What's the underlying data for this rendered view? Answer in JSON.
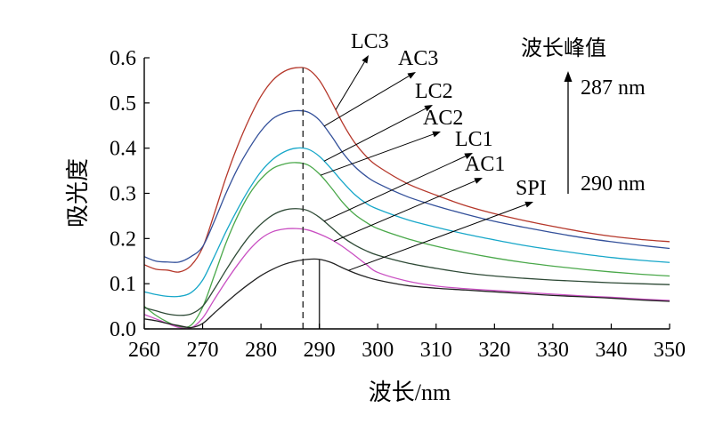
{
  "chart_data": {
    "type": "line",
    "title": "",
    "xlabel": "波长/nm",
    "ylabel": "吸光度",
    "xlim": [
      260,
      350
    ],
    "ylim": [
      0.0,
      0.6
    ],
    "x_ticks": [
      "260",
      "270",
      "280",
      "290",
      "300",
      "310",
      "320",
      "330",
      "340",
      "350"
    ],
    "y_ticks": [
      "0.0",
      "0.1",
      "0.2",
      "0.3",
      "0.4",
      "0.5",
      "0.6"
    ],
    "grid": false,
    "legend": "none",
    "series": [
      {
        "name": "LC3",
        "color": "#b5372a",
        "points": [
          [
            260,
            0.142
          ],
          [
            262,
            0.132
          ],
          [
            264,
            0.13
          ],
          [
            266,
            0.126
          ],
          [
            268,
            0.14
          ],
          [
            270,
            0.18
          ],
          [
            272,
            0.255
          ],
          [
            274,
            0.335
          ],
          [
            276,
            0.405
          ],
          [
            278,
            0.465
          ],
          [
            280,
            0.515
          ],
          [
            282,
            0.55
          ],
          [
            284,
            0.57
          ],
          [
            286,
            0.578
          ],
          [
            288,
            0.575
          ],
          [
            290,
            0.55
          ],
          [
            292,
            0.505
          ],
          [
            294,
            0.455
          ],
          [
            296,
            0.413
          ],
          [
            298,
            0.382
          ],
          [
            300,
            0.36
          ],
          [
            305,
            0.322
          ],
          [
            310,
            0.296
          ],
          [
            315,
            0.273
          ],
          [
            320,
            0.255
          ],
          [
            325,
            0.24
          ],
          [
            330,
            0.227
          ],
          [
            335,
            0.215
          ],
          [
            340,
            0.205
          ],
          [
            345,
            0.198
          ],
          [
            350,
            0.193
          ]
        ]
      },
      {
        "name": "AC3",
        "color": "#33509a",
        "points": [
          [
            260,
            0.16
          ],
          [
            262,
            0.15
          ],
          [
            264,
            0.148
          ],
          [
            266,
            0.148
          ],
          [
            268,
            0.16
          ],
          [
            270,
            0.182
          ],
          [
            272,
            0.238
          ],
          [
            274,
            0.3
          ],
          [
            276,
            0.355
          ],
          [
            278,
            0.4
          ],
          [
            280,
            0.438
          ],
          [
            282,
            0.465
          ],
          [
            284,
            0.478
          ],
          [
            286,
            0.483
          ],
          [
            288,
            0.48
          ],
          [
            290,
            0.462
          ],
          [
            292,
            0.428
          ],
          [
            294,
            0.39
          ],
          [
            296,
            0.36
          ],
          [
            298,
            0.338
          ],
          [
            300,
            0.322
          ],
          [
            305,
            0.293
          ],
          [
            310,
            0.272
          ],
          [
            315,
            0.254
          ],
          [
            320,
            0.238
          ],
          [
            325,
            0.225
          ],
          [
            330,
            0.213
          ],
          [
            335,
            0.202
          ],
          [
            340,
            0.193
          ],
          [
            345,
            0.185
          ],
          [
            350,
            0.178
          ]
        ]
      },
      {
        "name": "LC2",
        "color": "#17a7c9",
        "points": [
          [
            260,
            0.082
          ],
          [
            262,
            0.076
          ],
          [
            264,
            0.072
          ],
          [
            266,
            0.072
          ],
          [
            268,
            0.08
          ],
          [
            270,
            0.108
          ],
          [
            272,
            0.16
          ],
          [
            274,
            0.215
          ],
          [
            276,
            0.265
          ],
          [
            278,
            0.31
          ],
          [
            280,
            0.348
          ],
          [
            282,
            0.375
          ],
          [
            284,
            0.392
          ],
          [
            286,
            0.4
          ],
          [
            288,
            0.398
          ],
          [
            290,
            0.382
          ],
          [
            292,
            0.355
          ],
          [
            294,
            0.325
          ],
          [
            296,
            0.298
          ],
          [
            298,
            0.278
          ],
          [
            300,
            0.265
          ],
          [
            305,
            0.242
          ],
          [
            310,
            0.225
          ],
          [
            315,
            0.21
          ],
          [
            320,
            0.197
          ],
          [
            325,
            0.185
          ],
          [
            330,
            0.175
          ],
          [
            335,
            0.166
          ],
          [
            340,
            0.158
          ],
          [
            345,
            0.152
          ],
          [
            350,
            0.147
          ]
        ]
      },
      {
        "name": "AC2",
        "color": "#4aa84a",
        "points": [
          [
            260,
            0.05
          ],
          [
            262,
            0.03
          ],
          [
            264,
            0.015
          ],
          [
            266,
            0.005
          ],
          [
            268,
            0.008
          ],
          [
            270,
            0.048
          ],
          [
            272,
            0.118
          ],
          [
            274,
            0.19
          ],
          [
            276,
            0.25
          ],
          [
            278,
            0.298
          ],
          [
            280,
            0.332
          ],
          [
            282,
            0.355
          ],
          [
            284,
            0.365
          ],
          [
            286,
            0.368
          ],
          [
            288,
            0.363
          ],
          [
            290,
            0.343
          ],
          [
            292,
            0.313
          ],
          [
            294,
            0.28
          ],
          [
            296,
            0.254
          ],
          [
            298,
            0.236
          ],
          [
            300,
            0.222
          ],
          [
            305,
            0.2
          ],
          [
            310,
            0.183
          ],
          [
            315,
            0.169
          ],
          [
            320,
            0.157
          ],
          [
            325,
            0.147
          ],
          [
            330,
            0.139
          ],
          [
            335,
            0.132
          ],
          [
            340,
            0.126
          ],
          [
            345,
            0.121
          ],
          [
            350,
            0.117
          ]
        ]
      },
      {
        "name": "LC1",
        "color": "#2e4a36",
        "points": [
          [
            260,
            0.047
          ],
          [
            262,
            0.04
          ],
          [
            264,
            0.033
          ],
          [
            266,
            0.03
          ],
          [
            268,
            0.033
          ],
          [
            270,
            0.05
          ],
          [
            272,
            0.088
          ],
          [
            274,
            0.13
          ],
          [
            276,
            0.17
          ],
          [
            278,
            0.205
          ],
          [
            280,
            0.232
          ],
          [
            282,
            0.252
          ],
          [
            284,
            0.263
          ],
          [
            286,
            0.266
          ],
          [
            288,
            0.262
          ],
          [
            290,
            0.247
          ],
          [
            292,
            0.225
          ],
          [
            294,
            0.203
          ],
          [
            296,
            0.186
          ],
          [
            298,
            0.173
          ],
          [
            300,
            0.163
          ],
          [
            305,
            0.146
          ],
          [
            310,
            0.134
          ],
          [
            315,
            0.124
          ],
          [
            320,
            0.117
          ],
          [
            325,
            0.112
          ],
          [
            330,
            0.108
          ],
          [
            335,
            0.105
          ],
          [
            340,
            0.102
          ],
          [
            345,
            0.1
          ],
          [
            350,
            0.098
          ]
        ]
      },
      {
        "name": "AC1",
        "color": "#c94fc2",
        "points": [
          [
            260,
            0.032
          ],
          [
            262,
            0.022
          ],
          [
            264,
            0.012
          ],
          [
            266,
            0.003
          ],
          [
            268,
            0.002
          ],
          [
            270,
            0.024
          ],
          [
            272,
            0.065
          ],
          [
            274,
            0.105
          ],
          [
            276,
            0.142
          ],
          [
            278,
            0.175
          ],
          [
            280,
            0.2
          ],
          [
            282,
            0.215
          ],
          [
            284,
            0.221
          ],
          [
            286,
            0.222
          ],
          [
            288,
            0.219
          ],
          [
            290,
            0.21
          ],
          [
            292,
            0.198
          ],
          [
            294,
            0.182
          ],
          [
            296,
            0.163
          ],
          [
            298,
            0.143
          ],
          [
            300,
            0.125
          ],
          [
            305,
            0.106
          ],
          [
            310,
            0.095
          ],
          [
            315,
            0.089
          ],
          [
            320,
            0.085
          ],
          [
            325,
            0.081
          ],
          [
            330,
            0.077
          ],
          [
            335,
            0.073
          ],
          [
            340,
            0.07
          ],
          [
            345,
            0.066
          ],
          [
            350,
            0.063
          ]
        ]
      },
      {
        "name": "SPI",
        "color": "#222222",
        "points": [
          [
            260,
            0.022
          ],
          [
            262,
            0.018
          ],
          [
            264,
            0.012
          ],
          [
            266,
            0.007
          ],
          [
            268,
            0.003
          ],
          [
            270,
            0.012
          ],
          [
            272,
            0.035
          ],
          [
            274,
            0.058
          ],
          [
            276,
            0.08
          ],
          [
            278,
            0.1
          ],
          [
            280,
            0.118
          ],
          [
            282,
            0.132
          ],
          [
            284,
            0.143
          ],
          [
            286,
            0.15
          ],
          [
            288,
            0.154
          ],
          [
            290,
            0.154
          ],
          [
            292,
            0.147
          ],
          [
            294,
            0.135
          ],
          [
            296,
            0.124
          ],
          [
            298,
            0.115
          ],
          [
            300,
            0.108
          ],
          [
            305,
            0.096
          ],
          [
            310,
            0.09
          ],
          [
            315,
            0.086
          ],
          [
            320,
            0.082
          ],
          [
            325,
            0.078
          ],
          [
            330,
            0.074
          ],
          [
            335,
            0.071
          ],
          [
            340,
            0.068
          ],
          [
            345,
            0.064
          ],
          [
            350,
            0.061
          ]
        ]
      }
    ],
    "reference_lines": [
      {
        "x": 287.2,
        "style": "dashed",
        "ymax": 0.578
      },
      {
        "x": 290.0,
        "style": "solid",
        "ymax": 0.154
      }
    ],
    "annotations": {
      "legend_title": "波长峰值",
      "top_value": "287 nm",
      "bottom_value": "290 nm"
    }
  }
}
